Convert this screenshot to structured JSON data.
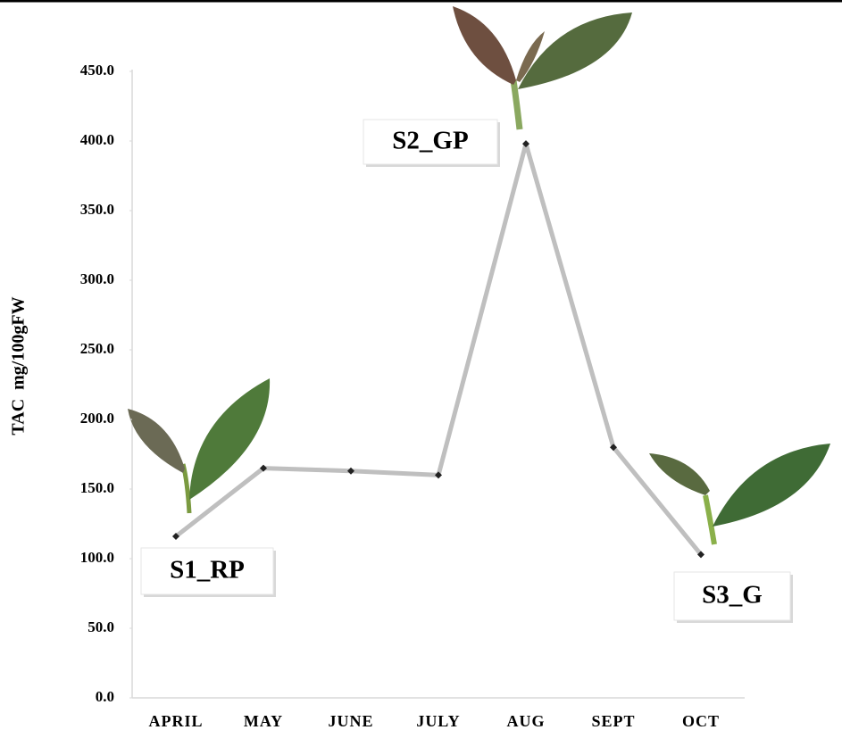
{
  "chart_data": {
    "type": "line",
    "y_label": "TAC  mg/100gFW",
    "categories": [
      "APRIL",
      "MAY",
      "JUNE",
      "JULY",
      "AUG",
      "SEPT",
      "OCT"
    ],
    "values": [
      116,
      165,
      163,
      160,
      398,
      180,
      103
    ],
    "color": "#bfbfbf",
    "marker_color": "#222222",
    "ylim": [
      0,
      450
    ],
    "yticks": [
      {
        "value": 0,
        "label": "0.0"
      },
      {
        "value": 50,
        "label": "50.0"
      },
      {
        "value": 100,
        "label": "100.0"
      },
      {
        "value": 150,
        "label": "150.0"
      },
      {
        "value": 200,
        "label": "200.0"
      },
      {
        "value": 250,
        "label": "250.0"
      },
      {
        "value": 300,
        "label": "300.0"
      },
      {
        "value": 350,
        "label": "350.0"
      },
      {
        "value": 400,
        "label": "400.0"
      },
      {
        "value": 450,
        "label": "450.0"
      }
    ],
    "grid": false,
    "annotations": [
      "S1_RP",
      "S2_GP",
      "S3_G"
    ]
  }
}
